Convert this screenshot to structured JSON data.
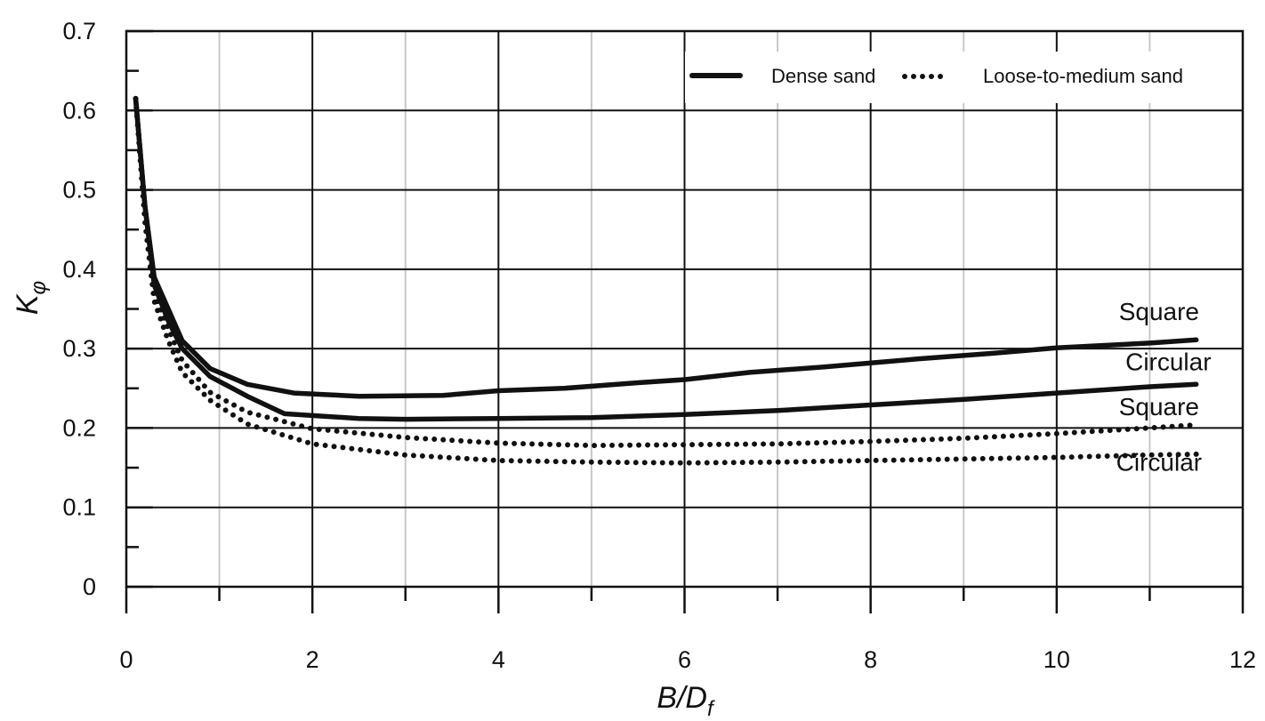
{
  "chart_data": {
    "type": "line",
    "title": "",
    "xlabel": {
      "main": "B/D",
      "sub": "f"
    },
    "ylabel": {
      "main": "K",
      "sub": "φ"
    },
    "xlim": [
      0,
      12
    ],
    "ylim": [
      0,
      0.7
    ],
    "xticks": [
      0,
      2,
      4,
      6,
      8,
      10,
      12
    ],
    "yticks": [
      0,
      0.1,
      0.2,
      0.3,
      0.4,
      0.5,
      0.6,
      0.7
    ],
    "xtick_labels": [
      "0",
      "2",
      "4",
      "6",
      "8",
      "10",
      "12"
    ],
    "ytick_labels": [
      "0",
      "0.1",
      "0.2",
      "0.3",
      "0.4",
      "0.5",
      "0.6",
      "0.7"
    ],
    "grid": true,
    "legend": {
      "placement": "top-right",
      "entries": [
        {
          "label": "Dense sand",
          "style": "solid"
        },
        {
          "label": "Loose-to-medium sand",
          "style": "dotted"
        }
      ]
    },
    "series": [
      {
        "group": "Dense sand",
        "label": "Square",
        "style": "solid",
        "x": [
          0.1,
          0.2,
          0.3,
          0.45,
          0.6,
          0.9,
          1.3,
          1.8,
          2.5,
          3.4,
          4.0,
          4.7,
          5.5,
          6.0,
          6.7,
          7.5,
          8.5,
          9.3,
          10.0,
          11.0,
          11.5
        ],
        "y": [
          0.615,
          0.48,
          0.39,
          0.35,
          0.31,
          0.275,
          0.255,
          0.244,
          0.24,
          0.241,
          0.247,
          0.25,
          0.257,
          0.261,
          0.27,
          0.277,
          0.287,
          0.294,
          0.301,
          0.307,
          0.311
        ]
      },
      {
        "group": "Dense sand",
        "label": "Circular",
        "style": "solid",
        "x": [
          0.1,
          0.2,
          0.3,
          0.45,
          0.6,
          0.9,
          1.3,
          1.7,
          2.5,
          3.0,
          4.0,
          5.0,
          6.0,
          7.0,
          8.0,
          9.0,
          10.0,
          11.0,
          11.5
        ],
        "y": [
          0.615,
          0.48,
          0.38,
          0.335,
          0.3,
          0.265,
          0.24,
          0.218,
          0.212,
          0.211,
          0.212,
          0.213,
          0.217,
          0.222,
          0.229,
          0.236,
          0.244,
          0.252,
          0.255
        ]
      },
      {
        "group": "Loose-to-medium sand",
        "label": "Square",
        "style": "dotted",
        "x": [
          0.1,
          0.2,
          0.3,
          0.45,
          0.6,
          0.9,
          1.3,
          2.0,
          3.0,
          4.0,
          5.0,
          6.0,
          7.0,
          8.0,
          9.0,
          10.0,
          11.0,
          11.5
        ],
        "y": [
          0.615,
          0.47,
          0.37,
          0.325,
          0.285,
          0.245,
          0.22,
          0.199,
          0.188,
          0.181,
          0.178,
          0.179,
          0.18,
          0.183,
          0.187,
          0.193,
          0.2,
          0.204
        ]
      },
      {
        "group": "Loose-to-medium sand",
        "label": "Circular",
        "style": "dotted",
        "x": [
          0.1,
          0.2,
          0.3,
          0.45,
          0.6,
          0.9,
          1.3,
          2.0,
          3.0,
          4.0,
          5.0,
          6.0,
          7.0,
          8.0,
          9.0,
          10.0,
          11.0,
          11.5
        ],
        "y": [
          0.615,
          0.46,
          0.36,
          0.31,
          0.27,
          0.235,
          0.205,
          0.18,
          0.166,
          0.159,
          0.157,
          0.156,
          0.157,
          0.159,
          0.161,
          0.163,
          0.166,
          0.167
        ]
      }
    ],
    "annotations": [
      {
        "text": "Square",
        "x": 11.1,
        "y": 0.336
      },
      {
        "text": "Circular",
        "x": 11.2,
        "y": 0.273
      },
      {
        "text": "Square",
        "x": 11.1,
        "y": 0.216
      },
      {
        "text": "Circular",
        "x": 11.1,
        "y": 0.146
      }
    ]
  }
}
